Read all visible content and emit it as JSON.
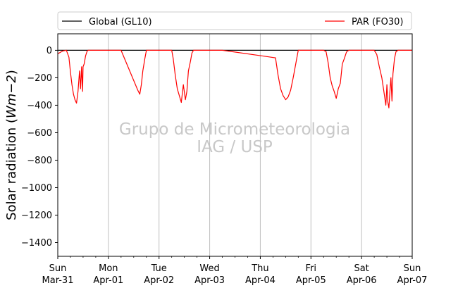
{
  "chart_data": {
    "type": "line",
    "title": "",
    "xlabel": "",
    "ylabel": "Solar radiation (Wm−2)",
    "ylabel_parts": {
      "prefix": "Solar radiation (",
      "unit": "Wm",
      "exponent": "−2",
      "suffix": ")"
    },
    "ylim": [
      -1500,
      120
    ],
    "xlim": [
      0,
      7
    ],
    "grid": "vertical",
    "legend_placement": "top",
    "yticks": [
      0,
      -200,
      -400,
      -600,
      -800,
      -1000,
      -1200,
      -1400
    ],
    "ytick_labels": [
      "0",
      "−200",
      "−400",
      "−600",
      "−800",
      "−1000",
      "−1200",
      "−1400"
    ],
    "xticks": [
      {
        "x": 0,
        "day": "Sun",
        "date": "Mar-31"
      },
      {
        "x": 1,
        "day": "Mon",
        "date": "Apr-01"
      },
      {
        "x": 2,
        "day": "Tue",
        "date": "Apr-02"
      },
      {
        "x": 3,
        "day": "Wed",
        "date": "Apr-03"
      },
      {
        "x": 4,
        "day": "Thu",
        "date": "Apr-04"
      },
      {
        "x": 5,
        "day": "Fri",
        "date": "Apr-05"
      },
      {
        "x": 6,
        "day": "Sat",
        "date": "Apr-06"
      },
      {
        "x": 7,
        "day": "Sun",
        "date": "Apr-07"
      }
    ],
    "watermark": [
      "Grupo de Micrometeorologia",
      "IAG / USP"
    ],
    "series": [
      {
        "name": "Global (GL10)",
        "color": "#000000",
        "x": [
          0,
          7
        ],
        "y": [
          0,
          0
        ]
      },
      {
        "name": "PAR (FO30)",
        "color": "#ff0000",
        "x": [
          0.0,
          0.1,
          0.17,
          0.22,
          0.25,
          0.28,
          0.31,
          0.34,
          0.37,
          0.4,
          0.43,
          0.45,
          0.47,
          0.49,
          0.5,
          0.52,
          0.55,
          0.58,
          0.6,
          0.63,
          0.66,
          0.69,
          0.72,
          0.75,
          1.25,
          1.58,
          1.62,
          1.65,
          1.68,
          1.72,
          1.75,
          1.9,
          2.25,
          2.28,
          2.32,
          2.36,
          2.4,
          2.44,
          2.48,
          2.52,
          2.55,
          2.58,
          2.62,
          2.65,
          2.68,
          2.72,
          2.75,
          3.25,
          4.3,
          4.35,
          4.4,
          4.45,
          4.5,
          4.55,
          4.6,
          4.65,
          4.7,
          4.75,
          5.25,
          5.3,
          5.34,
          5.38,
          5.42,
          5.46,
          5.5,
          5.54,
          5.58,
          5.62,
          5.66,
          5.7,
          5.72,
          5.75,
          6.25,
          6.3,
          6.35,
          6.4,
          6.44,
          6.48,
          6.5,
          6.52,
          6.54,
          6.56,
          6.58,
          6.6,
          6.62,
          6.65,
          6.68,
          6.72,
          6.75,
          7.0
        ],
        "y": [
          -25,
          -5,
          0,
          -50,
          -160,
          -250,
          -320,
          -360,
          -385,
          -300,
          -150,
          -280,
          -120,
          -300,
          -120,
          -100,
          -40,
          -5,
          0,
          0,
          0,
          0,
          0,
          0,
          0,
          -290,
          -320,
          -250,
          -150,
          -60,
          0,
          0,
          0,
          -60,
          -180,
          -280,
          -330,
          -380,
          -250,
          -360,
          -300,
          -150,
          -80,
          -20,
          0,
          0,
          0,
          0,
          -55,
          -180,
          -280,
          -330,
          -360,
          -340,
          -290,
          -200,
          -100,
          0,
          0,
          -10,
          -90,
          -200,
          -260,
          -300,
          -350,
          -280,
          -240,
          -100,
          -60,
          -15,
          -5,
          0,
          0,
          -30,
          -120,
          -200,
          -300,
          -400,
          -250,
          -380,
          -420,
          -300,
          -200,
          -370,
          -170,
          -60,
          -10,
          0,
          0,
          0
        ]
      }
    ]
  }
}
